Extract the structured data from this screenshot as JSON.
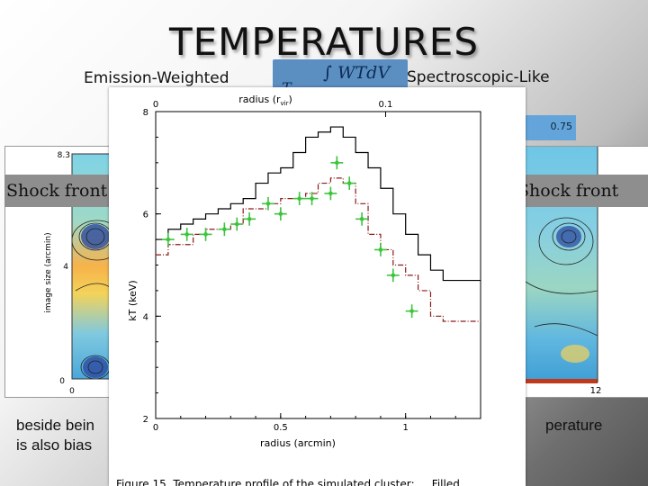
{
  "slide": {
    "title": "TEMPERATURES",
    "label_left": "Emission-Weighted",
    "label_right": "Spectroscopic-Like",
    "formula_text": "WTdV",
    "formula_symbol": "T",
    "exponent_text": "0.75",
    "shock_left": "Shock front",
    "shock_right": "Shock front",
    "bottom_line1_left": "beside bein",
    "bottom_line1_right": "perature",
    "bottom_line2_left": "is also bias"
  },
  "left_map": {
    "x_tick_left": "0",
    "y_ticks": [
      "8.3",
      "4",
      "0"
    ],
    "ylabel": "image size (arcmin)"
  },
  "right_map": {
    "x_tick_right": "12"
  },
  "chart_data": {
    "type": "line",
    "xlabel": "radius (arcmin)",
    "top_xlabel": "radius (r",
    "top_xlabel_sub": "vir",
    "top_xlabel_end": ")",
    "ylabel": "kT (keV)",
    "xlim": [
      0,
      1.3
    ],
    "ylim": [
      2,
      8
    ],
    "x_ticks": [
      "0",
      "0.5",
      "1"
    ],
    "y_ticks": [
      "2",
      "4",
      "6",
      "8"
    ],
    "top_ticks": [
      "0",
      "0.1"
    ],
    "caption": "Figure 15. Temperature profile of the simulated cluster; ... Filled",
    "series": [
      {
        "style": "black-step",
        "edges": [
          0,
          0.05,
          0.1,
          0.15,
          0.2,
          0.25,
          0.3,
          0.35,
          0.4,
          0.45,
          0.5,
          0.55,
          0.6,
          0.65,
          0.7,
          0.75,
          0.8,
          0.85,
          0.9,
          0.95,
          1.0,
          1.05,
          1.1,
          1.15,
          1.3
        ],
        "values": [
          5.5,
          5.7,
          5.8,
          5.9,
          6.0,
          6.1,
          6.2,
          6.3,
          6.6,
          6.8,
          6.9,
          7.2,
          7.5,
          7.6,
          7.7,
          7.5,
          7.2,
          6.9,
          6.5,
          6.0,
          5.6,
          5.2,
          4.9,
          4.7
        ]
      },
      {
        "style": "red-dashdot-step",
        "edges": [
          0,
          0.05,
          0.1,
          0.15,
          0.2,
          0.25,
          0.3,
          0.35,
          0.4,
          0.45,
          0.5,
          0.55,
          0.6,
          0.65,
          0.7,
          0.75,
          0.8,
          0.85,
          0.9,
          0.95,
          1.0,
          1.05,
          1.1,
          1.15,
          1.3
        ],
        "values": [
          5.2,
          5.4,
          5.4,
          5.6,
          5.7,
          5.7,
          5.8,
          6.1,
          6.1,
          6.2,
          6.3,
          6.3,
          6.4,
          6.6,
          6.7,
          6.6,
          6.2,
          5.6,
          5.3,
          5.0,
          4.8,
          4.5,
          4.0,
          3.9
        ]
      },
      {
        "style": "green-errorbars",
        "x": [
          0.05,
          0.125,
          0.2,
          0.275,
          0.325,
          0.375,
          0.45,
          0.5,
          0.575,
          0.625,
          0.7,
          0.725,
          0.775,
          0.825,
          0.9,
          0.95,
          1.025
        ],
        "y": [
          5.5,
          5.6,
          5.6,
          5.7,
          5.8,
          5.9,
          6.2,
          6.0,
          6.3,
          6.3,
          6.4,
          7.0,
          6.6,
          5.9,
          5.3,
          4.8,
          4.1
        ],
        "xerr": 0.025,
        "yerr": 0.13
      }
    ]
  }
}
